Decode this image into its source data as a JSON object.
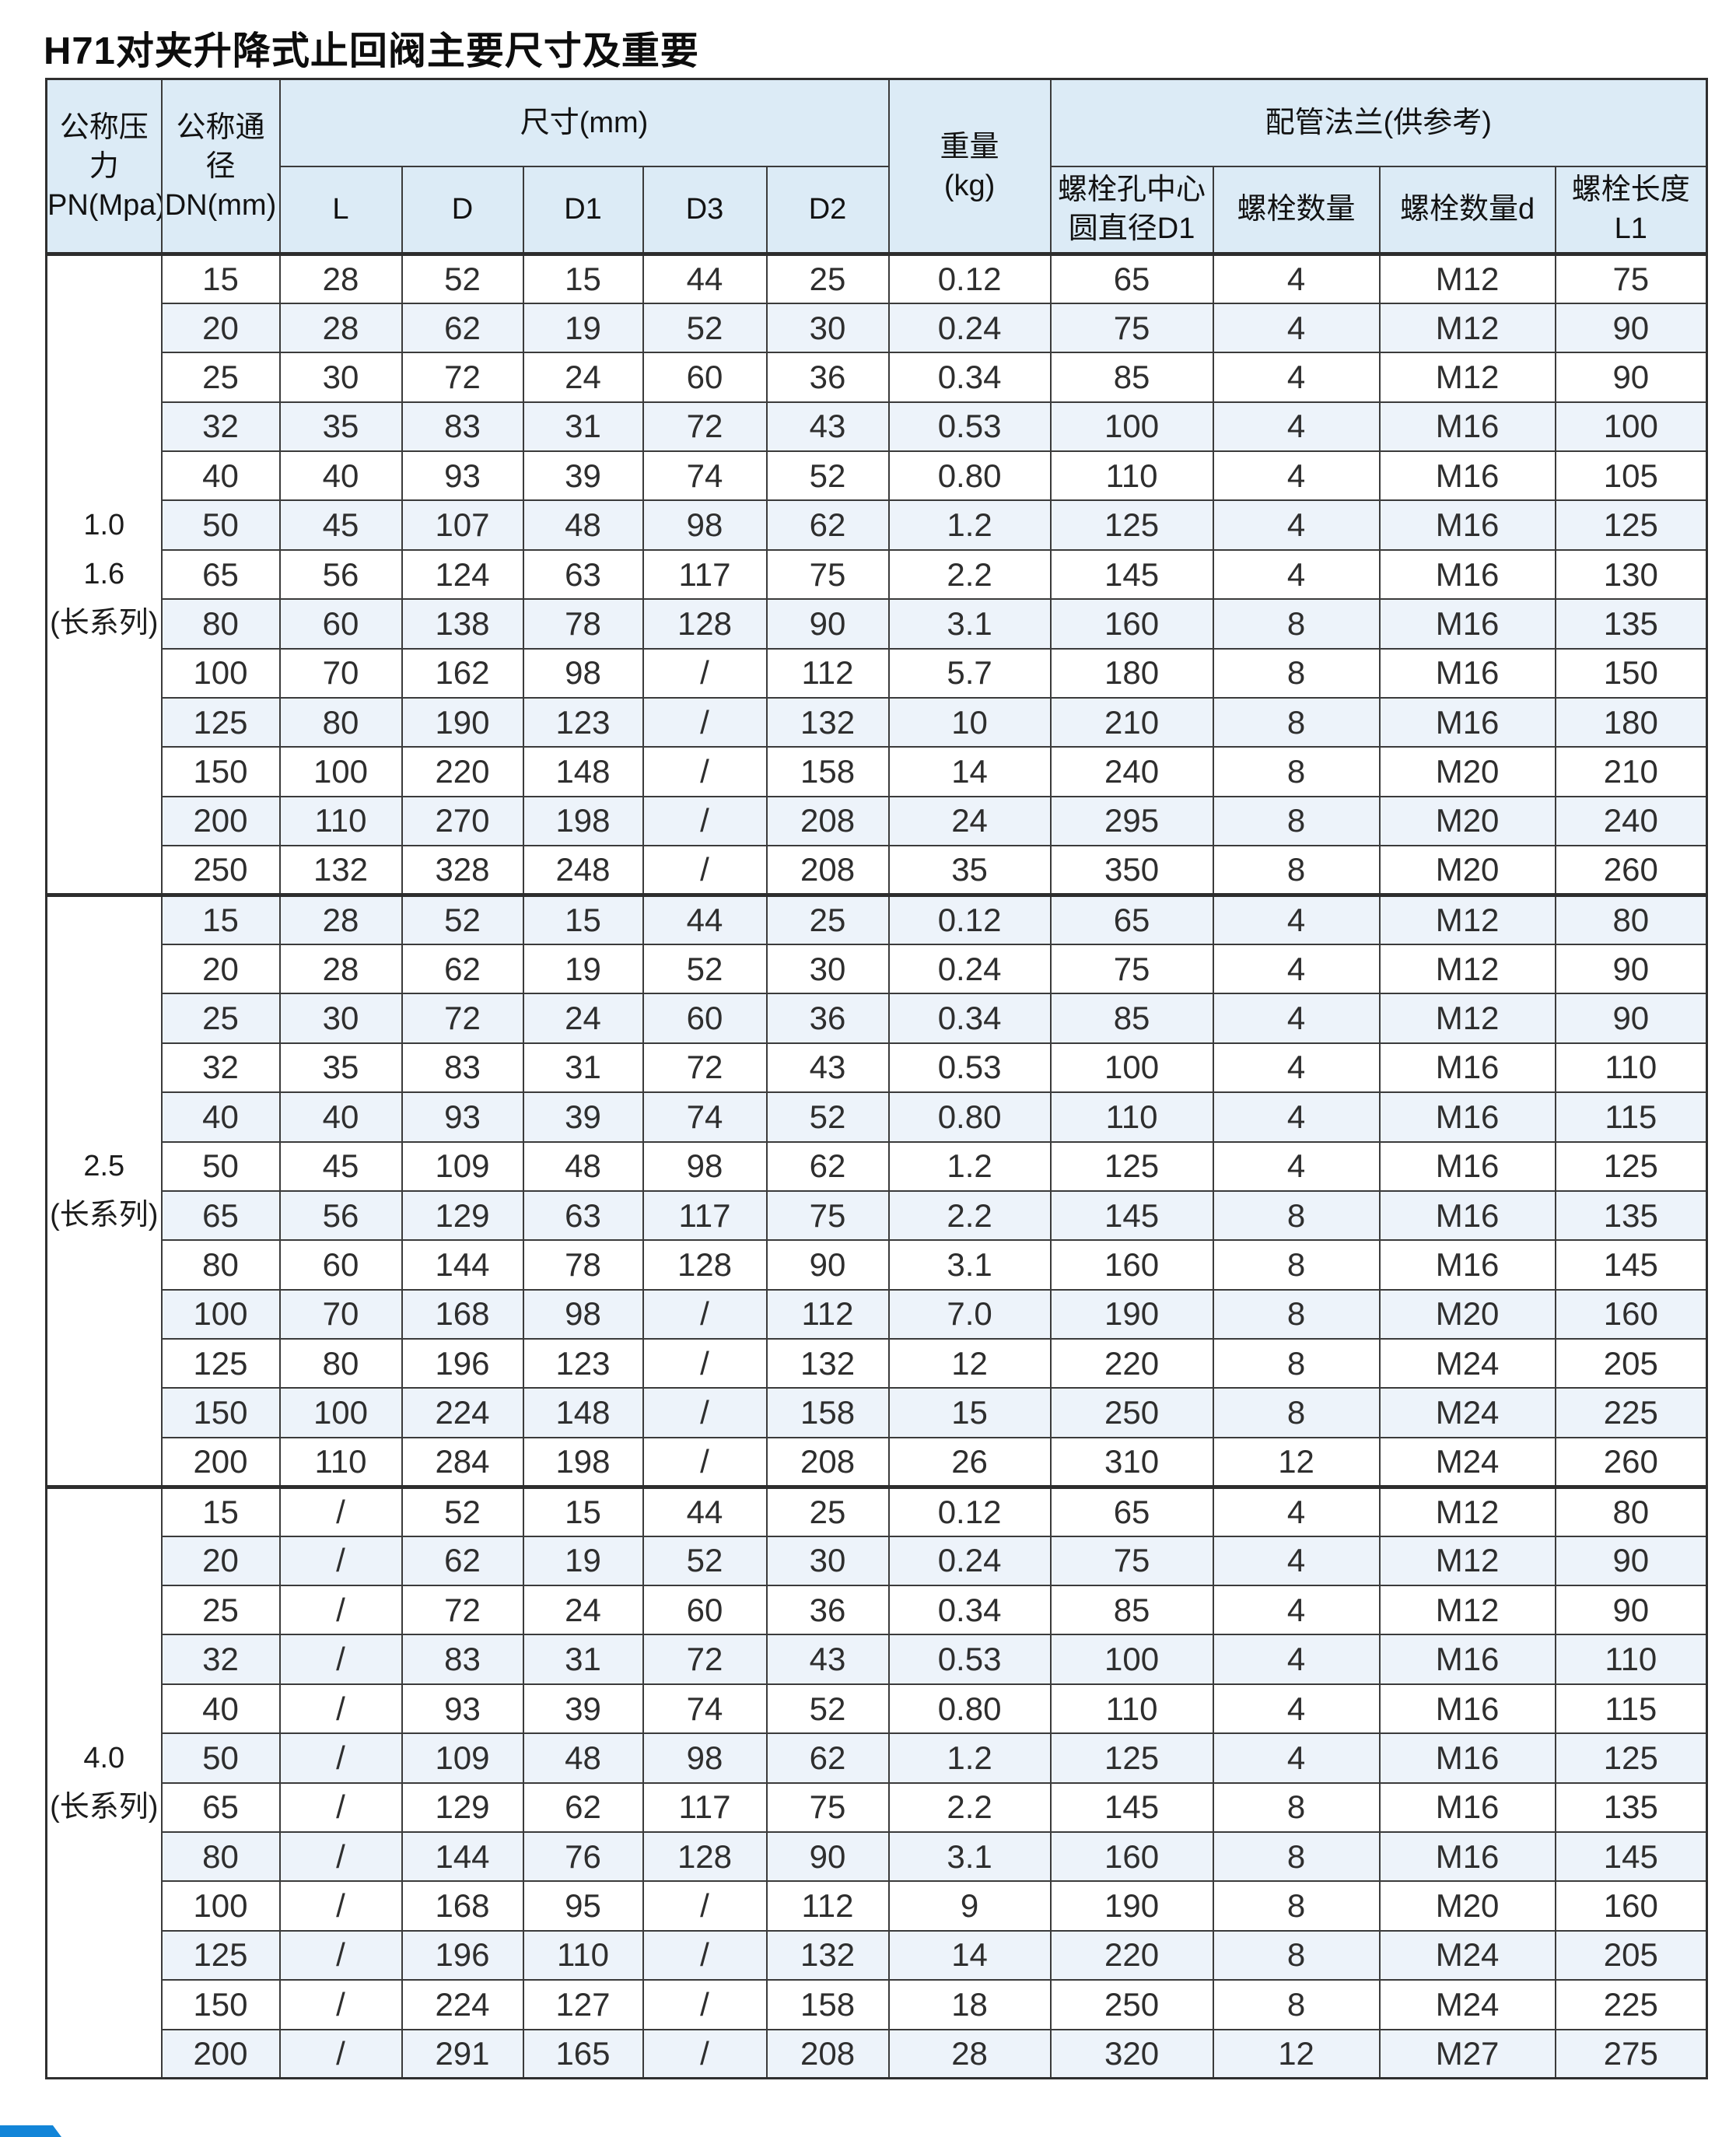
{
  "title": "H71对夹升降式止回阀主要尺寸及重要",
  "accent_color": "#1285d8",
  "header_bg_color": "#dcebf6",
  "stripe_color": "#edf3fa",
  "table": {
    "header": {
      "pn": "公称压力\nPN(Mpa)",
      "dn": "公称通径\nDN(mm)",
      "size": "尺寸(mm)",
      "weight": "重量\n(kg)",
      "flange": "配管法兰(供参考)",
      "l": "L",
      "d": "D",
      "d1": "D1",
      "d3": "D3",
      "d2": "D2",
      "bolt_circle": "螺栓孔中心\n圆直径D1",
      "bolt_qty": "螺栓数量",
      "bolt_d": "螺栓数量d",
      "bolt_len": "螺栓长度L1"
    },
    "groups": [
      {
        "pn_lines": [
          "1.0",
          "1.6",
          "(长系列)"
        ],
        "rows": [
          [
            "15",
            "28",
            "52",
            "15",
            "44",
            "25",
            "0.12",
            "65",
            "4",
            "M12",
            "75"
          ],
          [
            "20",
            "28",
            "62",
            "19",
            "52",
            "30",
            "0.24",
            "75",
            "4",
            "M12",
            "90"
          ],
          [
            "25",
            "30",
            "72",
            "24",
            "60",
            "36",
            "0.34",
            "85",
            "4",
            "M12",
            "90"
          ],
          [
            "32",
            "35",
            "83",
            "31",
            "72",
            "43",
            "0.53",
            "100",
            "4",
            "M16",
            "100"
          ],
          [
            "40",
            "40",
            "93",
            "39",
            "74",
            "52",
            "0.80",
            "110",
            "4",
            "M16",
            "105"
          ],
          [
            "50",
            "45",
            "107",
            "48",
            "98",
            "62",
            "1.2",
            "125",
            "4",
            "M16",
            "125"
          ],
          [
            "65",
            "56",
            "124",
            "63",
            "117",
            "75",
            "2.2",
            "145",
            "4",
            "M16",
            "130"
          ],
          [
            "80",
            "60",
            "138",
            "78",
            "128",
            "90",
            "3.1",
            "160",
            "8",
            "M16",
            "135"
          ],
          [
            "100",
            "70",
            "162",
            "98",
            "/",
            "112",
            "5.7",
            "180",
            "8",
            "M16",
            "150"
          ],
          [
            "125",
            "80",
            "190",
            "123",
            "/",
            "132",
            "10",
            "210",
            "8",
            "M16",
            "180"
          ],
          [
            "150",
            "100",
            "220",
            "148",
            "/",
            "158",
            "14",
            "240",
            "8",
            "M20",
            "210"
          ],
          [
            "200",
            "110",
            "270",
            "198",
            "/",
            "208",
            "24",
            "295",
            "8",
            "M20",
            "240"
          ],
          [
            "250",
            "132",
            "328",
            "248",
            "/",
            "208",
            "35",
            "350",
            "8",
            "M20",
            "260"
          ]
        ]
      },
      {
        "pn_lines": [
          "2.5",
          "(长系列)"
        ],
        "rows": [
          [
            "15",
            "28",
            "52",
            "15",
            "44",
            "25",
            "0.12",
            "65",
            "4",
            "M12",
            "80"
          ],
          [
            "20",
            "28",
            "62",
            "19",
            "52",
            "30",
            "0.24",
            "75",
            "4",
            "M12",
            "90"
          ],
          [
            "25",
            "30",
            "72",
            "24",
            "60",
            "36",
            "0.34",
            "85",
            "4",
            "M12",
            "90"
          ],
          [
            "32",
            "35",
            "83",
            "31",
            "72",
            "43",
            "0.53",
            "100",
            "4",
            "M16",
            "110"
          ],
          [
            "40",
            "40",
            "93",
            "39",
            "74",
            "52",
            "0.80",
            "110",
            "4",
            "M16",
            "115"
          ],
          [
            "50",
            "45",
            "109",
            "48",
            "98",
            "62",
            "1.2",
            "125",
            "4",
            "M16",
            "125"
          ],
          [
            "65",
            "56",
            "129",
            "63",
            "117",
            "75",
            "2.2",
            "145",
            "8",
            "M16",
            "135"
          ],
          [
            "80",
            "60",
            "144",
            "78",
            "128",
            "90",
            "3.1",
            "160",
            "8",
            "M16",
            "145"
          ],
          [
            "100",
            "70",
            "168",
            "98",
            "/",
            "112",
            "7.0",
            "190",
            "8",
            "M20",
            "160"
          ],
          [
            "125",
            "80",
            "196",
            "123",
            "/",
            "132",
            "12",
            "220",
            "8",
            "M24",
            "205"
          ],
          [
            "150",
            "100",
            "224",
            "148",
            "/",
            "158",
            "15",
            "250",
            "8",
            "M24",
            "225"
          ],
          [
            "200",
            "110",
            "284",
            "198",
            "/",
            "208",
            "26",
            "310",
            "12",
            "M24",
            "260"
          ]
        ]
      },
      {
        "pn_lines": [
          "4.0",
          "(长系列)"
        ],
        "rows": [
          [
            "15",
            "/",
            "52",
            "15",
            "44",
            "25",
            "0.12",
            "65",
            "4",
            "M12",
            "80"
          ],
          [
            "20",
            "/",
            "62",
            "19",
            "52",
            "30",
            "0.24",
            "75",
            "4",
            "M12",
            "90"
          ],
          [
            "25",
            "/",
            "72",
            "24",
            "60",
            "36",
            "0.34",
            "85",
            "4",
            "M12",
            "90"
          ],
          [
            "32",
            "/",
            "83",
            "31",
            "72",
            "43",
            "0.53",
            "100",
            "4",
            "M16",
            "110"
          ],
          [
            "40",
            "/",
            "93",
            "39",
            "74",
            "52",
            "0.80",
            "110",
            "4",
            "M16",
            "115"
          ],
          [
            "50",
            "/",
            "109",
            "48",
            "98",
            "62",
            "1.2",
            "125",
            "4",
            "M16",
            "125"
          ],
          [
            "65",
            "/",
            "129",
            "62",
            "117",
            "75",
            "2.2",
            "145",
            "8",
            "M16",
            "135"
          ],
          [
            "80",
            "/",
            "144",
            "76",
            "128",
            "90",
            "3.1",
            "160",
            "8",
            "M16",
            "145"
          ],
          [
            "100",
            "/",
            "168",
            "95",
            "/",
            "112",
            "9",
            "190",
            "8",
            "M20",
            "160"
          ],
          [
            "125",
            "/",
            "196",
            "110",
            "/",
            "132",
            "14",
            "220",
            "8",
            "M24",
            "205"
          ],
          [
            "150",
            "/",
            "224",
            "127",
            "/",
            "158",
            "18",
            "250",
            "8",
            "M24",
            "225"
          ],
          [
            "200",
            "/",
            "291",
            "165",
            "/",
            "208",
            "28",
            "320",
            "12",
            "M27",
            "275"
          ]
        ]
      }
    ]
  }
}
